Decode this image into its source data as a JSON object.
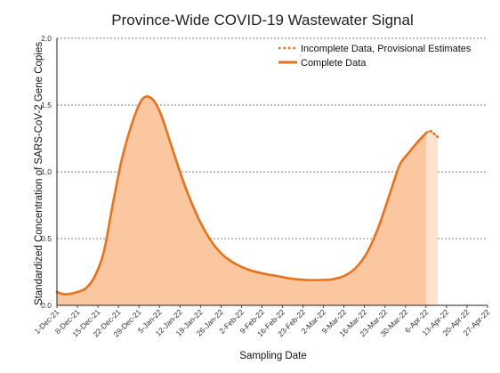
{
  "chart_data": {
    "type": "area",
    "title": "Province-Wide COVID-19 Wastewater Signal",
    "xlabel": "Sampling Date",
    "ylabel": "Standardized Concentration of SARS-CoV-2 Gene Copies",
    "ylim": [
      0,
      2.0
    ],
    "yticks": [
      "0.0",
      "0.5",
      "1.0",
      "1.5",
      "2.0"
    ],
    "xlim": [
      "2021-12-01",
      "2022-04-27"
    ],
    "xticks": [
      "1-Dec-21",
      "8-Dec-21",
      "15-Dec-21",
      "22-Dec-21",
      "29-Dec-21",
      "5-Jan-22",
      "12-Jan-22",
      "19-Jan-22",
      "26-Jan-22",
      "2-Feb-22",
      "9-Feb-22",
      "16-Feb-22",
      "23-Feb-22",
      "2-Mar-22",
      "9-Mar-22",
      "16-Mar-22",
      "23-Mar-22",
      "30-Mar-22",
      "6-Apr-22",
      "13-Apr-22",
      "20-Apr-22",
      "27-Apr-22"
    ],
    "grid": "horizontal dashed",
    "legend_position": "top-right",
    "legend": [
      {
        "label": "Incomplete Data, Provisional Estimates",
        "style": "dotted"
      },
      {
        "label": "Complete Data",
        "style": "solid"
      }
    ],
    "colors": {
      "line": "#e8721c",
      "fill": "#fbc7a0",
      "provisional_fill": "#fde3cf"
    },
    "series": [
      {
        "name": "Complete Data",
        "x": [
          "2021-12-01",
          "2021-12-03",
          "2021-12-05",
          "2021-12-08",
          "2021-12-11",
          "2021-12-14",
          "2021-12-17",
          "2021-12-20",
          "2021-12-23",
          "2021-12-26",
          "2021-12-29",
          "2021-12-31",
          "2022-01-02",
          "2022-01-04",
          "2022-01-06",
          "2022-01-09",
          "2022-01-12",
          "2022-01-15",
          "2022-01-19",
          "2022-01-23",
          "2022-01-27",
          "2022-01-31",
          "2022-02-04",
          "2022-02-09",
          "2022-02-14",
          "2022-02-19",
          "2022-02-24",
          "2022-03-01",
          "2022-03-05",
          "2022-03-09",
          "2022-03-13",
          "2022-03-17",
          "2022-03-21",
          "2022-03-25",
          "2022-03-28",
          "2022-03-31",
          "2022-04-03",
          "2022-04-06"
        ],
        "y": [
          0.1,
          0.085,
          0.085,
          0.1,
          0.13,
          0.22,
          0.4,
          0.75,
          1.08,
          1.32,
          1.5,
          1.56,
          1.555,
          1.5,
          1.4,
          1.2,
          1.0,
          0.82,
          0.62,
          0.47,
          0.37,
          0.31,
          0.27,
          0.24,
          0.22,
          0.2,
          0.19,
          0.19,
          0.195,
          0.22,
          0.28,
          0.4,
          0.6,
          0.86,
          1.05,
          1.14,
          1.22,
          1.29
        ]
      },
      {
        "name": "Incomplete Data, Provisional Estimates",
        "x": [
          "2022-04-06",
          "2022-04-07",
          "2022-04-08",
          "2022-04-09",
          "2022-04-10"
        ],
        "y": [
          1.29,
          1.305,
          1.3,
          1.28,
          1.26
        ]
      }
    ]
  }
}
